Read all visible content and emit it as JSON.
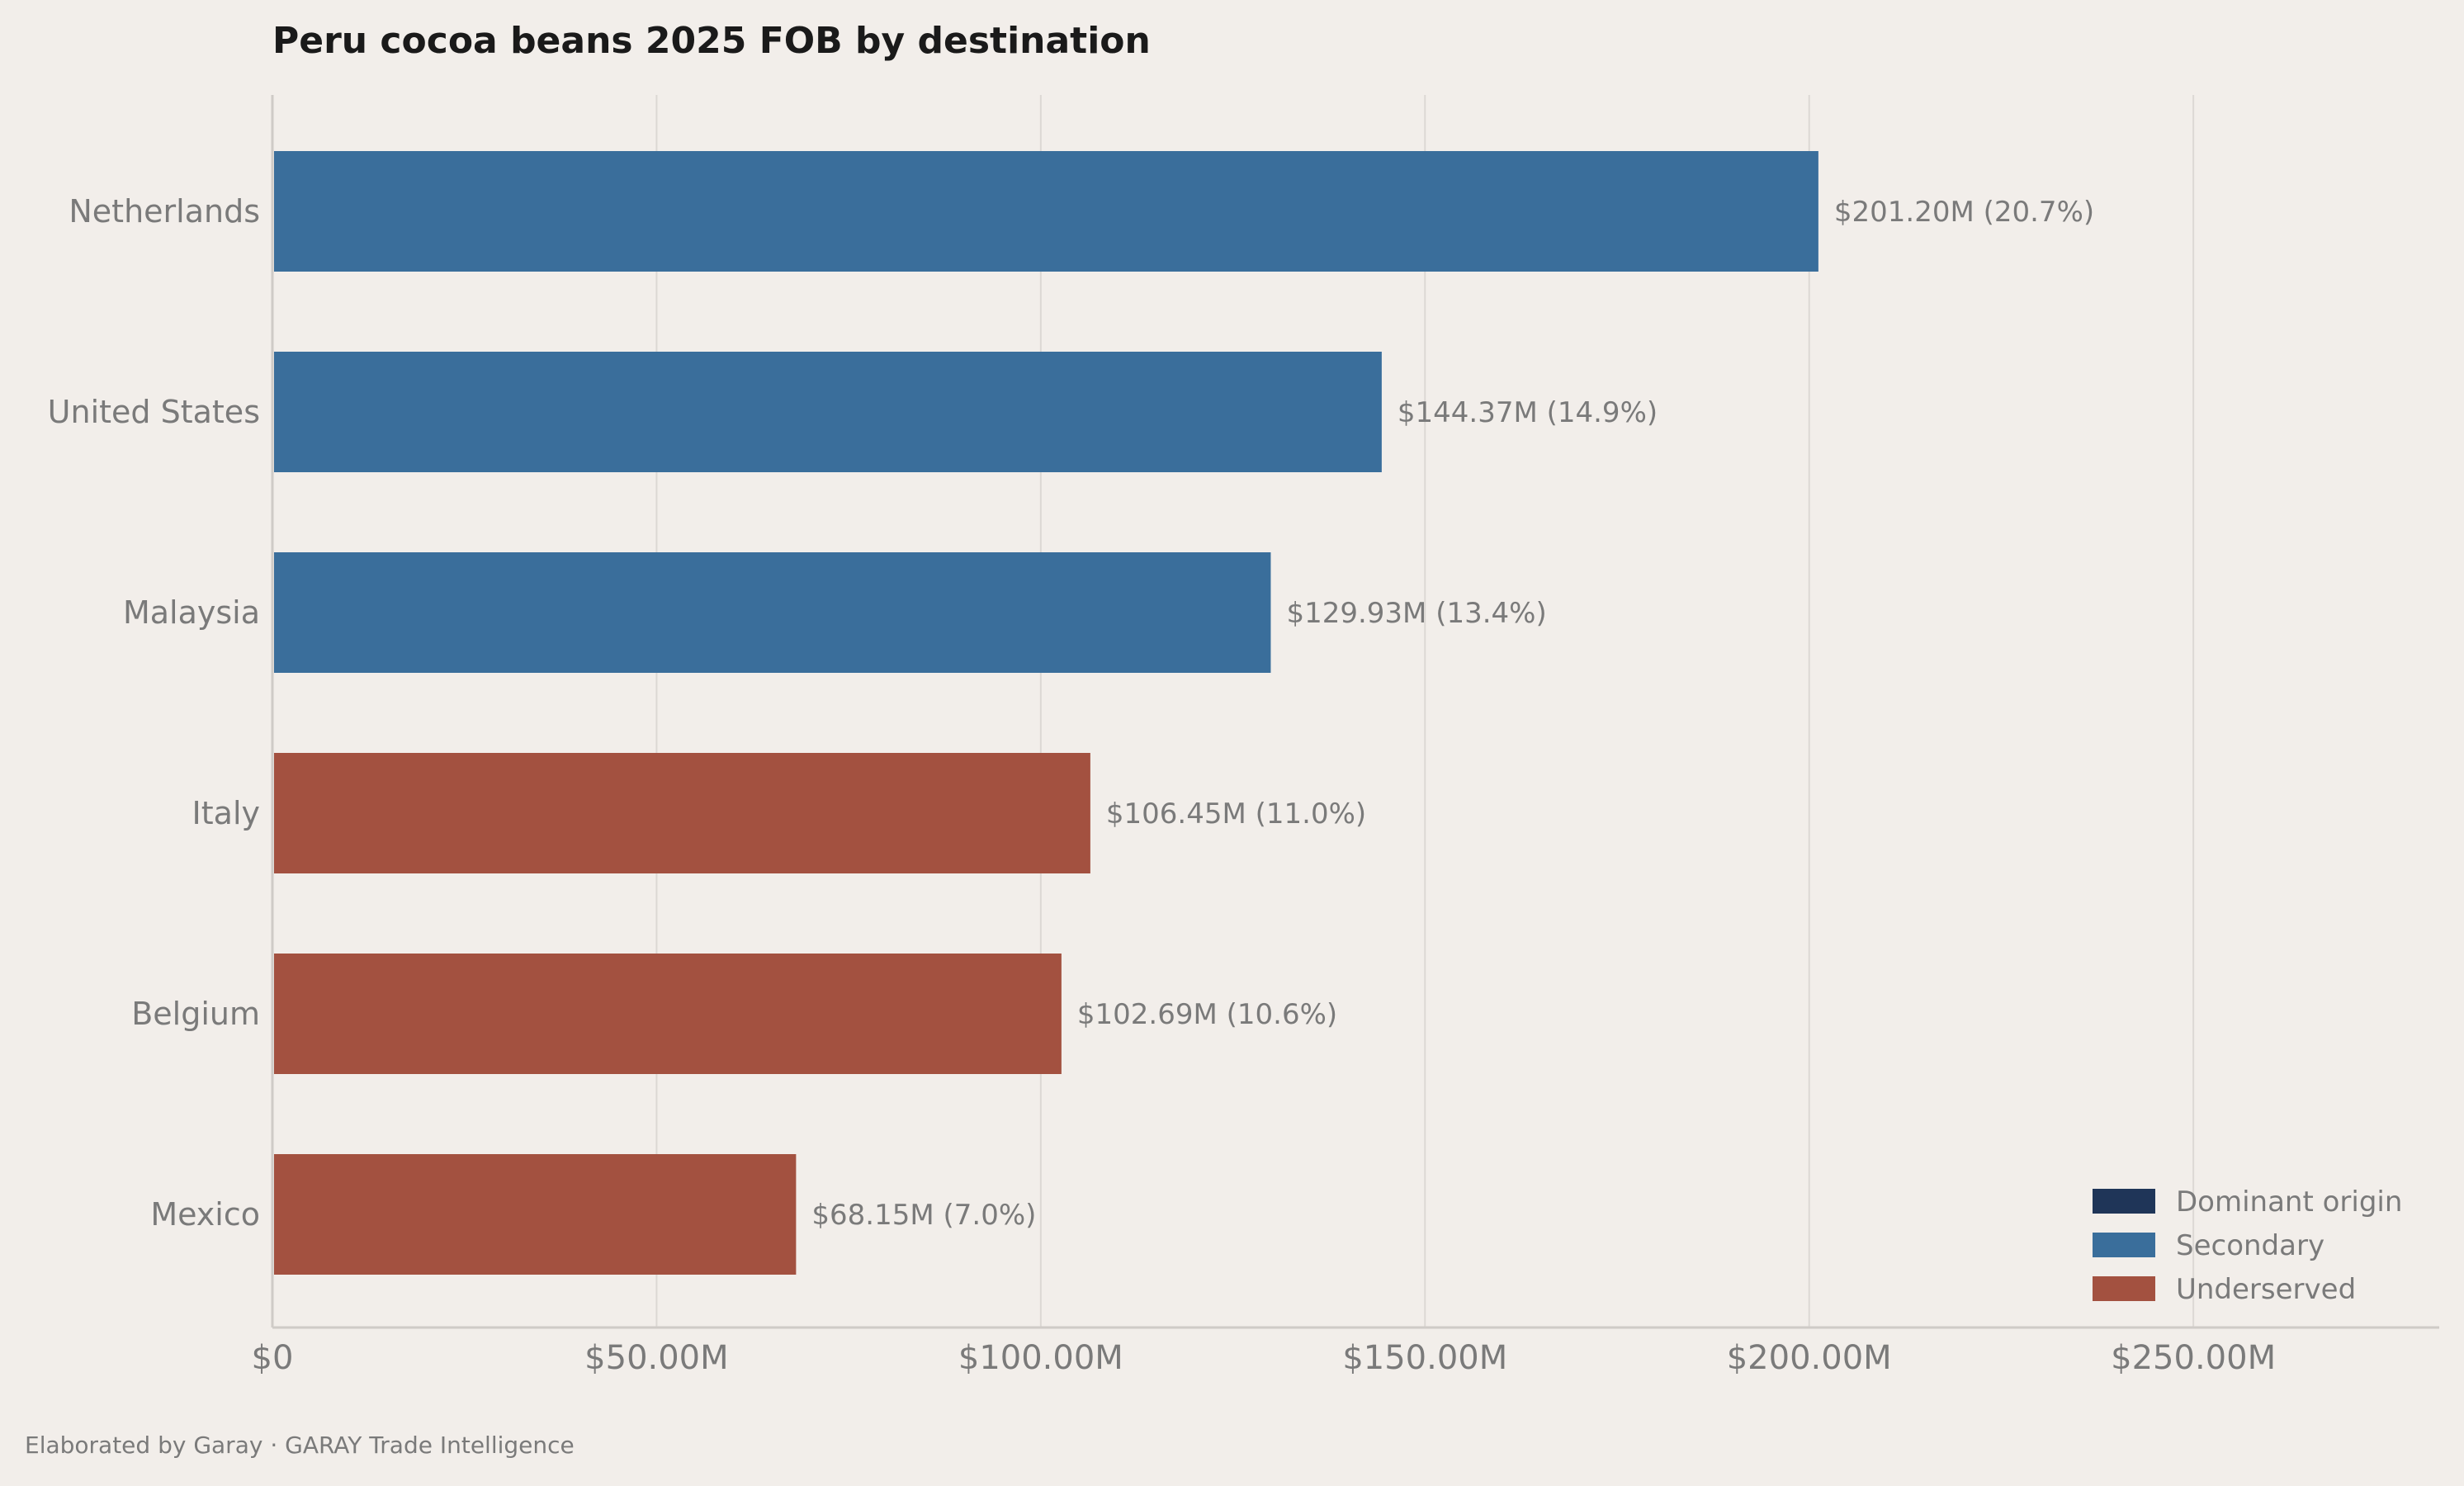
{
  "chart_data": {
    "type": "bar",
    "orientation": "horizontal",
    "title": "Peru cocoa beans 2025 FOB by destination",
    "xlabel": "",
    "ylabel": "",
    "categories": [
      "Netherlands",
      "United States",
      "Malaysia",
      "Italy",
      "Belgium",
      "Mexico"
    ],
    "values": [
      201.2,
      144.37,
      129.93,
      106.45,
      102.69,
      68.15
    ],
    "value_labels": [
      "$201.20M  (20.7%)",
      "$144.37M  (14.9%)",
      "$129.93M  (13.4%)",
      "$106.45M  (11.0%)",
      "$102.69M  (10.6%)",
      "$68.15M  (7.0%)"
    ],
    "groups": [
      "Secondary",
      "Secondary",
      "Secondary",
      "Underserved",
      "Underserved",
      "Underserved"
    ],
    "xlim": [
      0,
      282
    ],
    "xticks": [
      0,
      50,
      100,
      150,
      200,
      250
    ],
    "xtick_labels": [
      "$0",
      "$50.00M",
      "$100.00M",
      "$150.00M",
      "$200.00M",
      "$250.00M"
    ],
    "grid": "vertical",
    "legend_position": "bottom-right",
    "legend": [
      {
        "name": "Dominant origin",
        "color": "#1F3558"
      },
      {
        "name": "Secondary",
        "color": "#3A6E9B"
      },
      {
        "name": "Underserved",
        "color": "#A35140"
      }
    ],
    "colors": {
      "Dominant origin": "#1F3558",
      "Secondary": "#3A6E9B",
      "Underserved": "#A35140"
    }
  },
  "footer": {
    "credit": "Elaborated by Garay  ·  GARAY Trade Intelligence"
  }
}
